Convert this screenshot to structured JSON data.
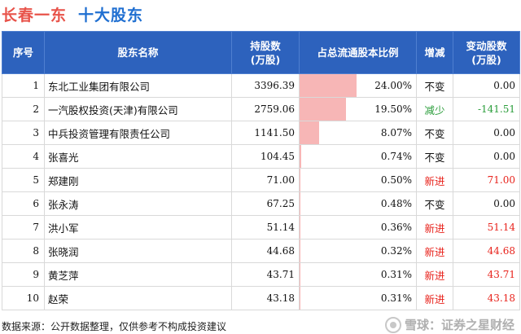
{
  "title": {
    "company": "长春一东",
    "subtitle": "十大股东"
  },
  "columns": {
    "rank": "序号",
    "name": "股东名称",
    "shares": "持股数\n(万股)",
    "ratio": "占总流通股本比例",
    "change": "增减",
    "delta": "变动股数\n(万股)"
  },
  "colors": {
    "header_bg": "#2d62bd",
    "bar": "#f7b6b6",
    "increase": "#e8221b",
    "decrease": "#2a9d3a",
    "unchanged": "#111111"
  },
  "rows": [
    {
      "rank": "1",
      "name": "东北工业集团有限公司",
      "shares": "3396.39",
      "ratio": "24.00%",
      "ratio_value": 24.0,
      "change": "不变",
      "change_type": "unchanged",
      "delta": "0.00"
    },
    {
      "rank": "2",
      "name": "一汽股权投资(天津)有限公司",
      "shares": "2759.06",
      "ratio": "19.50%",
      "ratio_value": 19.5,
      "change": "减少",
      "change_type": "decrease",
      "delta": "-141.51"
    },
    {
      "rank": "3",
      "name": "中兵投资管理有限责任公司",
      "shares": "1141.50",
      "ratio": "8.07%",
      "ratio_value": 8.07,
      "change": "不变",
      "change_type": "unchanged",
      "delta": "0.00"
    },
    {
      "rank": "4",
      "name": "张喜光",
      "shares": "104.45",
      "ratio": "0.74%",
      "ratio_value": 0.74,
      "change": "不变",
      "change_type": "unchanged",
      "delta": "0.00"
    },
    {
      "rank": "5",
      "name": "郑建刚",
      "shares": "71.00",
      "ratio": "0.50%",
      "ratio_value": 0.5,
      "change": "新进",
      "change_type": "increase",
      "delta": "71.00"
    },
    {
      "rank": "6",
      "name": "张永涛",
      "shares": "67.25",
      "ratio": "0.48%",
      "ratio_value": 0.48,
      "change": "不变",
      "change_type": "unchanged",
      "delta": "0.00"
    },
    {
      "rank": "7",
      "name": "洪小军",
      "shares": "51.14",
      "ratio": "0.36%",
      "ratio_value": 0.36,
      "change": "新进",
      "change_type": "increase",
      "delta": "51.14"
    },
    {
      "rank": "8",
      "name": "张晓润",
      "shares": "44.68",
      "ratio": "0.32%",
      "ratio_value": 0.32,
      "change": "新进",
      "change_type": "increase",
      "delta": "44.68"
    },
    {
      "rank": "9",
      "name": "黄芝萍",
      "shares": "43.71",
      "ratio": "0.31%",
      "ratio_value": 0.31,
      "change": "新进",
      "change_type": "increase",
      "delta": "43.71"
    },
    {
      "rank": "10",
      "name": "赵荣",
      "shares": "43.18",
      "ratio": "0.31%",
      "ratio_value": 0.31,
      "change": "新进",
      "change_type": "increase",
      "delta": "43.18"
    }
  ],
  "footer": {
    "note": "数据来源：公开数据整理，仅供参考不构成投资建议"
  },
  "watermark": {
    "text": "雪球：证券之星财经",
    "logo_icon": "xueqiu-logo-icon"
  }
}
